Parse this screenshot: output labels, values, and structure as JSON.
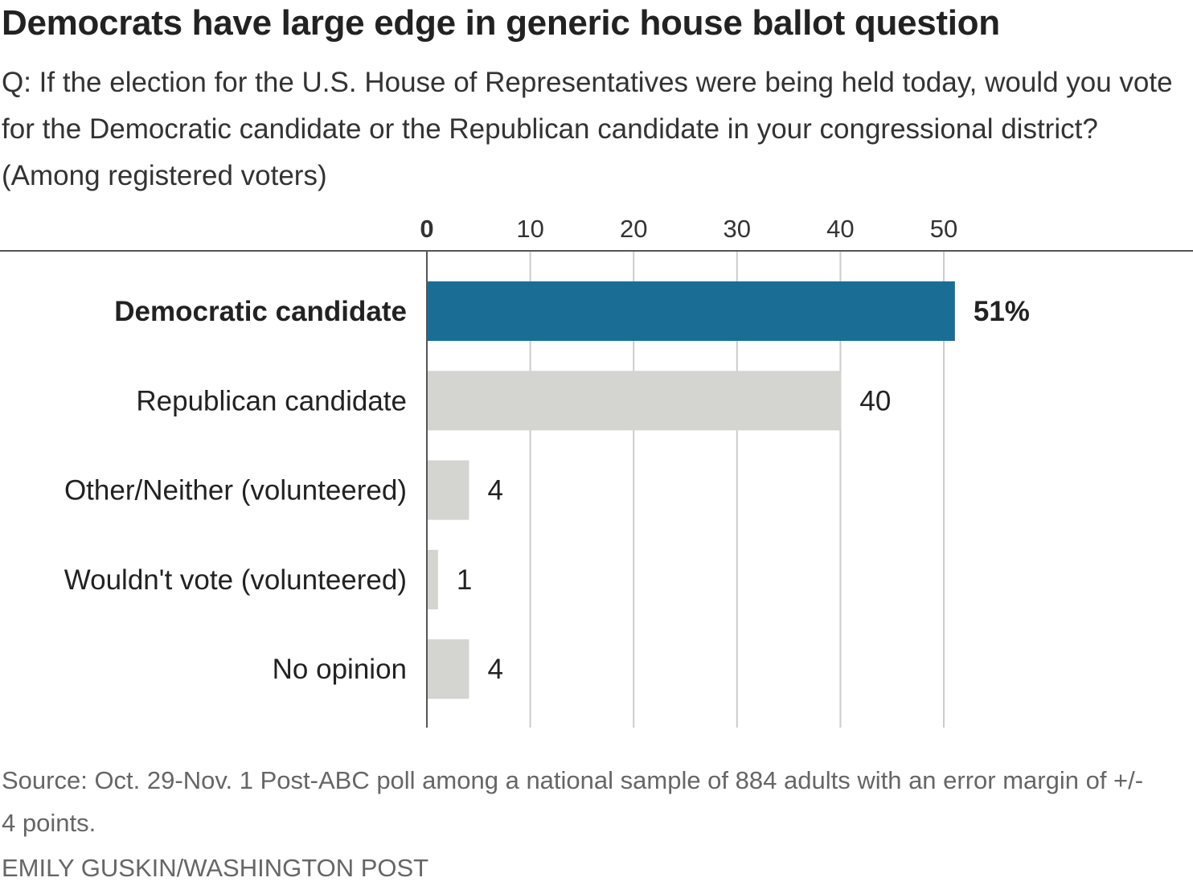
{
  "chart_data": {
    "type": "bar",
    "orientation": "horizontal",
    "title": "Democrats have large edge in generic house ballot question",
    "subtitle": "Q: If the election for the U.S. House of Representatives were being held today, would you vote for the Democratic candidate or the Republican candidate in your congressional district? (Among registered voters)",
    "categories": [
      "Democratic candidate",
      "Republican candidate",
      "Other/Neither (volunteered)",
      "Wouldn't vote (volunteered)",
      "No opinion"
    ],
    "values": [
      51,
      40,
      4,
      1,
      4
    ],
    "value_labels": [
      "51%",
      "40",
      "4",
      "1",
      "4"
    ],
    "highlight_index": 0,
    "xlim": [
      0,
      55
    ],
    "ticks": [
      0,
      10,
      20,
      30,
      40,
      50
    ],
    "tick_labels": [
      "0",
      "10",
      "20",
      "30",
      "40",
      "50"
    ],
    "axis_position": "top",
    "grid": true,
    "colors": {
      "highlight": "#1a6e96",
      "default": "#d4d4d0",
      "grid": "#cccccc",
      "axis": "#555555"
    }
  },
  "footer": {
    "source": "Source: Oct. 29-Nov. 1 Post-ABC poll among a national sample of 884 adults with an error margin of +/- 4 points.",
    "credit": "EMILY GUSKIN/WASHINGTON POST"
  }
}
